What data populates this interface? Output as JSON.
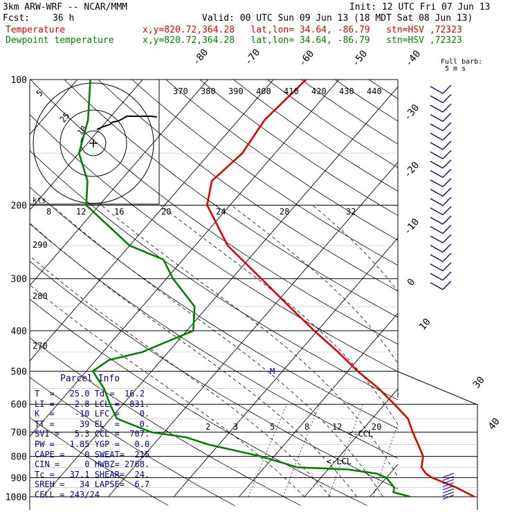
{
  "header": {
    "model": "3km ARW-WRF -- NCAR/MMM",
    "init": "Init: 12 UTC Fri 07 Jun 13",
    "fcst_label": "Fcst:",
    "fcst_value": "36 h",
    "valid": "Valid: 00 UTC Sun 09 Jun 13 (18 MDT Sat 08 Jun 13)",
    "temp_label": "Temperature",
    "temp_info": "x,y=820.72,364.28   lat,lon= 34.64, -86.79   stn=HSV ,72323",
    "dew_label": "Dewpoint temperature",
    "dew_info": "x,y=820.72,364.28   lat,lon= 34.64, -86.79   stn=HSV ,72323"
  },
  "barb_legend": {
    "line1": "Full barb:",
    "line2": "5 m s"
  },
  "parcel": {
    "title": "Parcel Info",
    "rows": [
      "T  =   25.0 Td =  16.2",
      "LI =    2.8 LCL =  831.",
      "K  =    -10 LFC =    0.",
      "TT =     39 EL  =    0.",
      "SVI =   5.3 CCL =  707.",
      "PW =   1.85 YGP =   0.0",
      "CAPE =    0 SWEAT=  215",
      "CIN =     0 HWBZ= 2768.",
      "Tc =   37.1 SHEAR=  24.",
      "SREH =   34 LAPSE=  6.7",
      "CELL = 243/24"
    ]
  },
  "chart_data": {
    "type": "line",
    "title": "",
    "pressure_levels": [
      100,
      200,
      300,
      400,
      500,
      600,
      700,
      800,
      900,
      1000
    ],
    "pressure_labels": [
      "100",
      "200",
      "300",
      "400",
      "500",
      "600",
      "700",
      "800",
      "900",
      "1000"
    ],
    "isotherm_labels": [
      "-80",
      "-70",
      "-60",
      "-50",
      "-40",
      "-30",
      "-20",
      "-10",
      "0",
      "10",
      "30",
      "40"
    ],
    "theta_labels": [
      "370",
      "380",
      "390",
      "400",
      "410",
      "420",
      "430",
      "440"
    ],
    "theta_side_labels": [
      "290",
      "280",
      "270"
    ],
    "mixing_ratio_labels": [
      "2",
      "3",
      "5",
      "8",
      "12",
      "20"
    ],
    "hodo_speed_labels": [
      "5",
      "25",
      "10"
    ],
    "hodo_axis_labels": [
      "kts",
      "8",
      "12",
      "16",
      "20",
      "24",
      "28",
      "32"
    ],
    "lcl_labels": [
      "<-CCL",
      "<-LCL"
    ],
    "marker_label": "M",
    "series": [
      {
        "name": "Temperature",
        "color": "#e00000",
        "p": [
          1000,
          950,
          925,
          900,
          880,
          850,
          800,
          750,
          700,
          650,
          600,
          550,
          500,
          450,
          400,
          350,
          300,
          250,
          200,
          175,
          150,
          125,
          100
        ],
        "t": [
          26.0,
          22.0,
          19.5,
          17.0,
          15.5,
          14.0,
          12.8,
          10.5,
          8.0,
          5.5,
          1.5,
          -3.0,
          -8.5,
          -14.0,
          -20.5,
          -27.5,
          -35.5,
          -45.0,
          -53.5,
          -56.0,
          -55.0,
          -56.0,
          -55.0
        ]
      },
      {
        "name": "Dewpoint temperature",
        "color": "#008000",
        "p": [
          1000,
          975,
          950,
          900,
          880,
          860,
          850,
          800,
          750,
          720,
          700,
          650,
          600,
          550,
          500,
          470,
          450,
          400,
          350,
          300,
          270,
          250,
          200,
          175,
          150,
          125,
          100
        ],
        "t": [
          16.2,
          13.0,
          12.5,
          10.0,
          8.0,
          3.0,
          -5.0,
          -12.0,
          -21.5,
          -26.0,
          -32.0,
          -39.0,
          -42.0,
          -45.0,
          -49.0,
          -48.0,
          -44.0,
          -39.0,
          -42.0,
          -49.0,
          -53.0,
          -60.0,
          -72.0,
          -75.0,
          -80.0,
          -83.0,
          -88.0
        ]
      }
    ],
    "hodograph": {
      "u": [
        0,
        3,
        6,
        7,
        8,
        10,
        14,
        18,
        22,
        25,
        28
      ],
      "v": [
        0,
        4,
        7,
        10,
        11,
        12,
        14,
        14,
        14,
        14,
        13
      ]
    },
    "wind_barbs": {
      "count": 22,
      "units": "m s-1"
    }
  }
}
